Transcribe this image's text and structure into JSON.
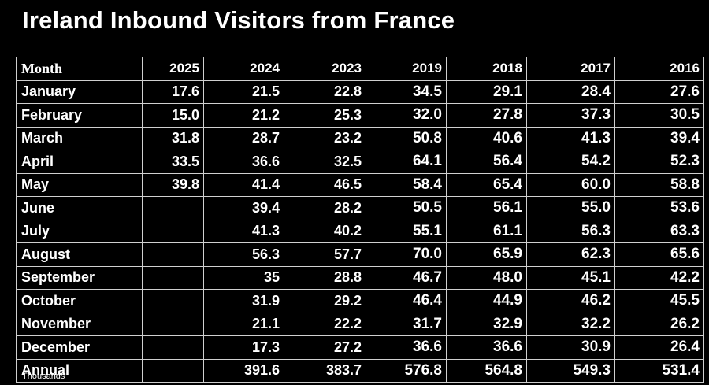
{
  "chart_data": {
    "type": "table",
    "title": "Ireland Inbound Visitors from France",
    "footnote": "Thousands",
    "columns": [
      "Month",
      "2025",
      "2024",
      "2023",
      "2019",
      "2018",
      "2017",
      "2016"
    ],
    "rows": [
      [
        "January",
        "17.6",
        "21.5",
        "22.8",
        "34.5",
        "29.1",
        "28.4",
        "27.6"
      ],
      [
        "February",
        "15.0",
        "21.2",
        "25.3",
        "32.0",
        "27.8",
        "37.3",
        "30.5"
      ],
      [
        "March",
        "31.8",
        "28.7",
        "23.2",
        "50.8",
        "40.6",
        "41.3",
        "39.4"
      ],
      [
        "April",
        "33.5",
        "36.6",
        "32.5",
        "64.1",
        "56.4",
        "54.2",
        "52.3"
      ],
      [
        "May",
        "39.8",
        "41.4",
        "46.5",
        "58.4",
        "65.4",
        "60.0",
        "58.8"
      ],
      [
        "June",
        "",
        "39.4",
        "28.2",
        "50.5",
        "56.1",
        "55.0",
        "53.6"
      ],
      [
        "July",
        "",
        "41.3",
        "40.2",
        "55.1",
        "61.1",
        "56.3",
        "63.3"
      ],
      [
        "August",
        "",
        "56.3",
        "57.7",
        "70.0",
        "65.9",
        "62.3",
        "65.6"
      ],
      [
        "September",
        "",
        "35",
        "28.8",
        "46.7",
        "48.0",
        "45.1",
        "42.2"
      ],
      [
        "October",
        "",
        "31.9",
        "29.2",
        "46.4",
        "44.9",
        "46.2",
        "45.5"
      ],
      [
        "November",
        "",
        "21.1",
        "22.2",
        "31.7",
        "32.9",
        "32.2",
        "26.2"
      ],
      [
        "December",
        "",
        "17.3",
        "27.2",
        "36.6",
        "36.6",
        "30.9",
        "26.4"
      ],
      [
        "Annual",
        "",
        "391.6",
        "383.7",
        "576.8",
        "564.8",
        "549.3",
        "531.4"
      ]
    ]
  }
}
